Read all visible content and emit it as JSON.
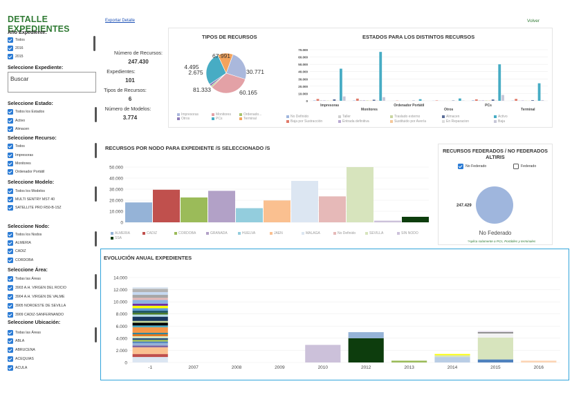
{
  "sidebar": {
    "title": "DETALLE EXPEDIENTES",
    "anio": {
      "heading": "Año Expediente:",
      "options": [
        "Todos",
        "2016",
        "2015"
      ]
    },
    "expediente": {
      "heading": "Seleccione Expediente:",
      "search_placeholder": "Buscar"
    },
    "estado": {
      "heading": "Seleccione Estado:",
      "options": [
        "Todos los Estados",
        "Activo",
        "Almacen"
      ]
    },
    "recurso": {
      "heading": "Seleccione Recurso:",
      "options": [
        "Todos",
        "Impresoras",
        "Monitores",
        "Ordenador Portátil"
      ]
    },
    "modelo": {
      "heading": "Seleccione Modelo:",
      "options": [
        "Todos los Modelos",
        "MULTI SENTRY MST 40",
        "SATELLITE PRO R50-B-15Z"
      ]
    },
    "nodo": {
      "heading": "Seleccione Nodo:",
      "options": [
        "Todos los Nodos",
        "ALMERIA",
        "CADIZ",
        "CORDOBA"
      ]
    },
    "area": {
      "heading": "Seleccione Área:",
      "options": [
        "Todas las Áreas",
        "3903 A.H. VIRGEN DEL ROCIO",
        "3904 A.H. VIRGEN DE VALME",
        "3905 NOROESTE DE SEVILLA",
        "3909 CADIZ-SANFERNANDO"
      ]
    },
    "ubicacion": {
      "heading": "Seleccione Ubicación:",
      "options": [
        "Todas las Áreas",
        "ABLA",
        "ABRUCENA",
        "ACEQUIAS",
        "ACULA"
      ]
    }
  },
  "toolbar": {
    "export_label": "Exportar Detalle",
    "back_label": "Volver"
  },
  "stats": {
    "recursos_label": "Número de Recursos:",
    "recursos_value": "247.430",
    "expedientes_label": "Expedientes:",
    "expedientes_value": "101",
    "tipos_label": "Tipos de Recursos:",
    "tipos_value": "6",
    "modelos_label": "Número de Modelos:",
    "modelos_value": "3.774"
  },
  "chart_data": [
    {
      "type": "pie",
      "title": "TIPOS DE RECURSOS",
      "labels": [
        "Impresoras",
        "Monitores",
        "Ordenado...",
        "Otros",
        "PCs",
        "Terminal"
      ],
      "values": [
        60165,
        81333,
        2675,
        4495,
        67991,
        30771
      ],
      "value_labels": [
        "60.165",
        "81.333",
        "2.675",
        "4.495",
        "67.991",
        "30.771"
      ],
      "colors": [
        "#aab8dc",
        "#e3a1a6",
        "#a6c46d",
        "#8d7cb7",
        "#47acc4",
        "#f3a35c"
      ]
    },
    {
      "type": "bar",
      "title": "ESTADOS PARA LOS DISTINTOS RECURSOS",
      "categories": [
        "Impresoras",
        "Monitores",
        "Ordenador Portátil",
        "Otros",
        "PCs",
        "Terminal"
      ],
      "ylim": [
        0,
        70000
      ],
      "yticks": [
        "0",
        "10.000",
        "20.000",
        "30.000",
        "40.000",
        "50.000",
        "60.000",
        "70.000"
      ],
      "series": [
        {
          "name": "No Definido",
          "color": "#9fb6dd",
          "values": [
            600,
            500,
            100,
            200,
            700,
            300
          ]
        },
        {
          "name": "Baja por Sustracción",
          "color": "#e07a6a",
          "values": [
            2500,
            3000,
            300,
            500,
            2000,
            2600
          ]
        },
        {
          "name": "Taller",
          "color": "#cfcfcf",
          "values": [
            800,
            900,
            100,
            200,
            700,
            400
          ]
        },
        {
          "name": "Entrada definitiva",
          "color": "#b8a8d2",
          "values": [
            600,
            700,
            100,
            100,
            600,
            500
          ]
        },
        {
          "name": "Traslado externo",
          "color": "#c9d6a0",
          "values": [
            400,
            600,
            100,
            100,
            500,
            300
          ]
        },
        {
          "name": "Sustituido por Avería",
          "color": "#f5c89b",
          "values": [
            300,
            400,
            100,
            100,
            400,
            200
          ]
        },
        {
          "name": "Almacen",
          "color": "#5b6d98",
          "values": [
            2000,
            1500,
            300,
            400,
            1800,
            900
          ]
        },
        {
          "name": "En Reparacion",
          "color": "#dcdcdc",
          "values": [
            500,
            600,
            100,
            100,
            500,
            300
          ]
        },
        {
          "name": "Activo",
          "color": "#47acc4",
          "values": [
            44000,
            67000,
            2200,
            3200,
            50000,
            24000
          ]
        },
        {
          "name": "Baja",
          "color": "#c7c7d8",
          "values": [
            6000,
            5000,
            200,
            400,
            8000,
            1000
          ]
        }
      ]
    },
    {
      "type": "bar",
      "title": "RECURSOS POR NODO PARA EXPEDIENTE /S SELECCIONADO /S",
      "categories": [
        "ALMERIA",
        "CADIZ",
        "CORDOBA",
        "GRANADA",
        "HUELVA",
        "JAEN",
        "MALAGA",
        "No Definido",
        "SEVILLA",
        "SIN NODO",
        "SSA"
      ],
      "values": [
        18000,
        29500,
        22500,
        28500,
        12800,
        19800,
        37500,
        23500,
        50000,
        1500,
        5000
      ],
      "colors": [
        "#95b3d7",
        "#c0504d",
        "#9bbb59",
        "#b2a1c7",
        "#93cddd",
        "#fac090",
        "#dce6f2",
        "#e6b9b8",
        "#d7e4bd",
        "#ccc1da",
        "#0d3d0d"
      ],
      "ylim": [
        0,
        55000
      ],
      "yticks": [
        "0",
        "10.000",
        "20.000",
        "30.000",
        "40.000",
        "50.000"
      ]
    },
    {
      "type": "pie",
      "title": "RECURSOS FEDERADOS / NO FEDERADOS ALTIRIS",
      "labels": [
        "No Federado"
      ],
      "values": [
        247429
      ],
      "value_labels": [
        "247.429"
      ],
      "colors": [
        "#9fb6dd"
      ]
    },
    {
      "type": "bar",
      "title": "EVOLUCIÓN ANUAL EXPEDIENTES",
      "categories": [
        "-1",
        "2007",
        "2008",
        "2009",
        "2010",
        "2012",
        "2013",
        "2014",
        "2015",
        "2016"
      ],
      "totals": [
        13000,
        0,
        0,
        0,
        2900,
        5000,
        300,
        1400,
        5200,
        300
      ],
      "ylim": [
        0,
        14000
      ],
      "yticks": [
        "0",
        "2.000",
        "4.000",
        "6.000",
        "8.000",
        "10.000",
        "12.000",
        "14.000"
      ],
      "stacks": [
        [
          [
            900,
            "#dce6f2"
          ],
          [
            500,
            "#c0504d"
          ],
          [
            1100,
            "#fac090"
          ],
          [
            300,
            "#8064a2"
          ],
          [
            400,
            "#95b3d7"
          ],
          [
            250,
            "#4f81bd"
          ],
          [
            300,
            "#9bbb59"
          ],
          [
            250,
            "#1f497d"
          ],
          [
            350,
            "#d7e4bd"
          ],
          [
            300,
            "#e46c0a"
          ],
          [
            250,
            "#31859c"
          ],
          [
            900,
            "#f79646"
          ],
          [
            300,
            "#4bacc6"
          ],
          [
            450,
            "#000000"
          ],
          [
            300,
            "#c3d69b"
          ],
          [
            700,
            "#17375e"
          ],
          [
            350,
            "#b7dee8"
          ],
          [
            300,
            "#4a7c2c"
          ],
          [
            350,
            "#215968"
          ],
          [
            400,
            "#5b9bd5"
          ],
          [
            400,
            "#ffff00"
          ],
          [
            350,
            "#7030a0"
          ],
          [
            600,
            "#8eb4e3"
          ],
          [
            350,
            "#e6b9b8"
          ],
          [
            500,
            "#a6a6a6"
          ],
          [
            450,
            "#c6d9f1"
          ],
          [
            550,
            "#b3b3b3"
          ],
          [
            250,
            "#dbe5f1"
          ]
        ],
        [],
        [],
        [],
        [
          [
            2900,
            "#ccc1da"
          ]
        ],
        [
          [
            4000,
            "#0d3d0d"
          ],
          [
            1000,
            "#95b3d7"
          ]
        ],
        [
          [
            300,
            "#9bbb59"
          ]
        ],
        [
          [
            900,
            "#b9cde5"
          ],
          [
            300,
            "#d7e4bd"
          ],
          [
            200,
            "#ffff00"
          ]
        ],
        [
          [
            500,
            "#4f81bd"
          ],
          [
            3600,
            "#d7e4bd"
          ],
          [
            700,
            "#f2f2f2"
          ],
          [
            200,
            "#7f7f7f"
          ],
          [
            200,
            "#e6e0ec"
          ]
        ],
        [
          [
            300,
            "#fcd5b5"
          ]
        ]
      ]
    }
  ],
  "pie_legend": [
    "Impresoras",
    "Monitores",
    "Ordenado...",
    "Otros",
    "PCs",
    "Terminal"
  ],
  "federado": {
    "no_federado_label": "No Federado",
    "federado_label": "Federado",
    "center_label": "No Federado",
    "note": "*Aplica solamente a PCs, Portátiles y terminales"
  }
}
